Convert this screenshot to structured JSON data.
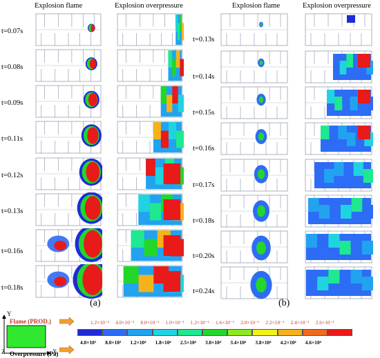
{
  "headers": {
    "a_flame": "Explosion flame",
    "a_overpressure": "Explosion overpressure",
    "b_flame": "Explosion flame",
    "b_overpressure": "Explosion overpressure"
  },
  "panel_a": {
    "label": "(a)",
    "times": [
      "t=0.07s",
      "t=0.08s",
      "t=0.09s",
      "t=0.11s",
      "t=0.12s",
      "t=0.13s",
      "t=0.16s",
      "t=0.18s"
    ]
  },
  "panel_b": {
    "label": "(b)",
    "times": [
      "t=0.13s",
      "t=0.14s",
      "t=0.15s",
      "t=0.16s",
      "t=0.17s",
      "t=0.18s",
      "t=0.20s",
      "t=0.24s"
    ]
  },
  "legend": {
    "flame_title": "Flame (PROD.)",
    "overpressure_title": "Overpressure (Pa)",
    "axis_y": "Y",
    "axis_x": "X",
    "axis_z": "Z",
    "flame_values": [
      "1.2×10⁻²",
      "4.0×10⁻²",
      "8.0×10⁻²",
      "1.0×10⁻¹",
      "1.2×10⁻¹",
      "1.6×10⁻¹",
      "2.0×10⁻¹",
      "2.2×10⁻¹",
      "2.4×10⁻¹",
      "2.6×10⁻¹"
    ],
    "pressure_values": [
      "4.0×10³",
      "8.0×10³",
      "1.2×10⁴",
      "1.8×10⁴",
      "2.5×10⁴",
      "3.0×10⁴",
      "3.4×10⁴",
      "3.8×10⁴",
      "4.2×10⁴",
      "4.6×10⁴"
    ],
    "colors": [
      "#ffffff",
      "#1e2bd8",
      "#2d6cf5",
      "#22a3f0",
      "#1fd4e0",
      "#1ee890",
      "#23d62a",
      "#8ee821",
      "#f3f01c",
      "#f5b21b",
      "#f06a1b",
      "#e81a1a"
    ]
  }
}
